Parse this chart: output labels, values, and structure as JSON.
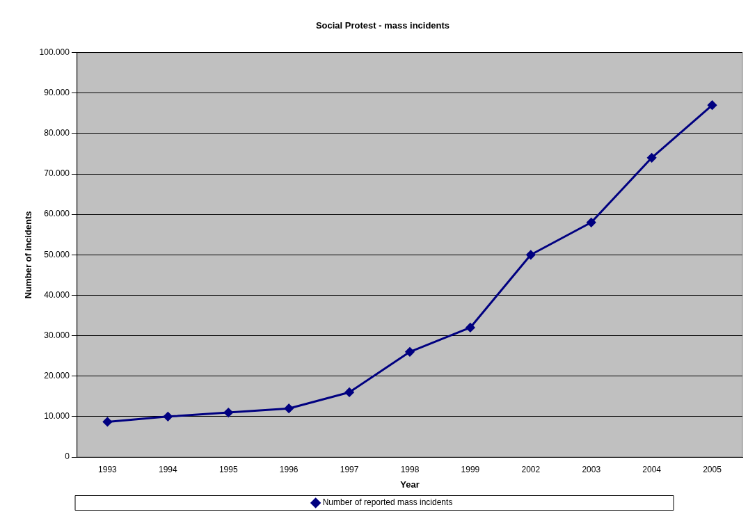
{
  "chart_data": {
    "type": "line",
    "title": "Social Protest - mass incidents",
    "xlabel": "Year",
    "ylabel": "Number of incidents",
    "categories": [
      "1993",
      "1994",
      "1995",
      "1996",
      "1997",
      "1998",
      "1999",
      "2002",
      "2003",
      "2004",
      "2005"
    ],
    "series": [
      {
        "name": "Number of reported mass incidents",
        "color": "#000080",
        "values": [
          8700,
          10000,
          11000,
          12000,
          16000,
          26000,
          32000,
          50000,
          58000,
          74000,
          87000
        ]
      }
    ],
    "ylim": [
      0,
      100000
    ],
    "yticks": [
      0,
      {
        "value": 10000,
        "label": "10.000"
      },
      {
        "value": 20000,
        "label": "20.000"
      },
      {
        "value": 30000,
        "label": "30.000"
      },
      {
        "value": 40000,
        "label": "40.000"
      },
      {
        "value": 50000,
        "label": "50.000"
      },
      {
        "value": 60000,
        "label": "60.000"
      },
      {
        "value": 70000,
        "label": "70.000"
      },
      {
        "value": 80000,
        "label": "80.000"
      },
      {
        "value": 90000,
        "label": "90.000"
      },
      {
        "value": 100000,
        "label": "100.000"
      }
    ],
    "grid": "y",
    "legend": "bottom",
    "marker": "diamond",
    "line_style": "solid"
  }
}
